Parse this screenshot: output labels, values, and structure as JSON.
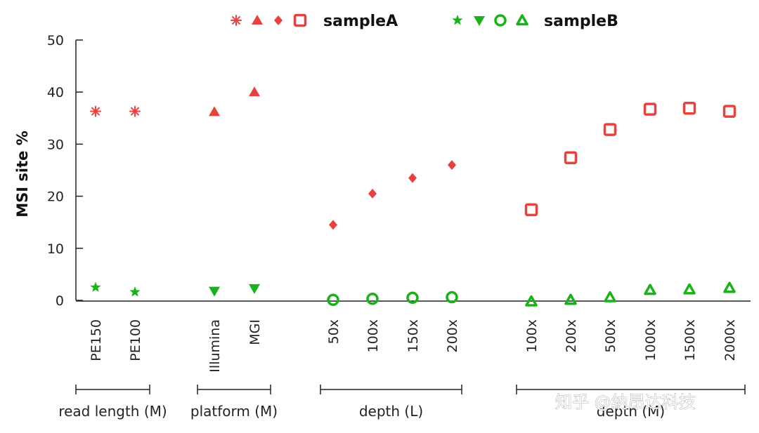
{
  "chart_data": {
    "type": "scatter",
    "title": "",
    "ylabel": "MSI site %",
    "ylim": [
      0,
      50
    ],
    "yticks": [
      0,
      10,
      20,
      30,
      40,
      50
    ],
    "colors": {
      "sampleA": "#e8423f",
      "sampleB": "#19b219"
    },
    "legend": [
      {
        "name": "sampleA",
        "markers": [
          "asterisk",
          "triangle-up",
          "diamond",
          "square-open"
        ]
      },
      {
        "name": "sampleB",
        "markers": [
          "star",
          "triangle-down",
          "circle-open",
          "triangle-open"
        ]
      }
    ],
    "groups": [
      {
        "label": "read length (M)",
        "categories": [
          "PE150",
          "PE100"
        ],
        "sampleA": {
          "marker": "asterisk",
          "values": [
            36.3,
            36.3
          ]
        },
        "sampleB": {
          "marker": "star",
          "values": [
            2.5,
            1.6
          ]
        }
      },
      {
        "label": "platform (M)",
        "categories": [
          "Illumina",
          "MGI"
        ],
        "sampleA": {
          "marker": "triangle-up",
          "values": [
            36.2,
            40.0
          ]
        },
        "sampleB": {
          "marker": "triangle-down",
          "values": [
            1.8,
            2.3
          ]
        }
      },
      {
        "label": "depth (L)",
        "categories": [
          "50x",
          "100x",
          "150x",
          "200x"
        ],
        "sampleA": {
          "marker": "diamond",
          "values": [
            14.5,
            20.5,
            23.5,
            26.0
          ]
        },
        "sampleB": {
          "marker": "circle-open",
          "values": [
            0.1,
            0.3,
            0.5,
            0.6
          ]
        }
      },
      {
        "label": "depth (M)",
        "categories": [
          "100x",
          "200x",
          "500x",
          "1000x",
          "1500x",
          "2000x"
        ],
        "sampleA": {
          "marker": "square-open",
          "values": [
            17.4,
            27.4,
            32.8,
            36.7,
            36.9,
            36.3
          ]
        },
        "sampleB": {
          "marker": "triangle-open",
          "values": [
            -0.2,
            0.1,
            0.6,
            2.0,
            2.1,
            2.4
          ]
        }
      }
    ]
  },
  "watermark": "知乎 @纳昂达科技"
}
